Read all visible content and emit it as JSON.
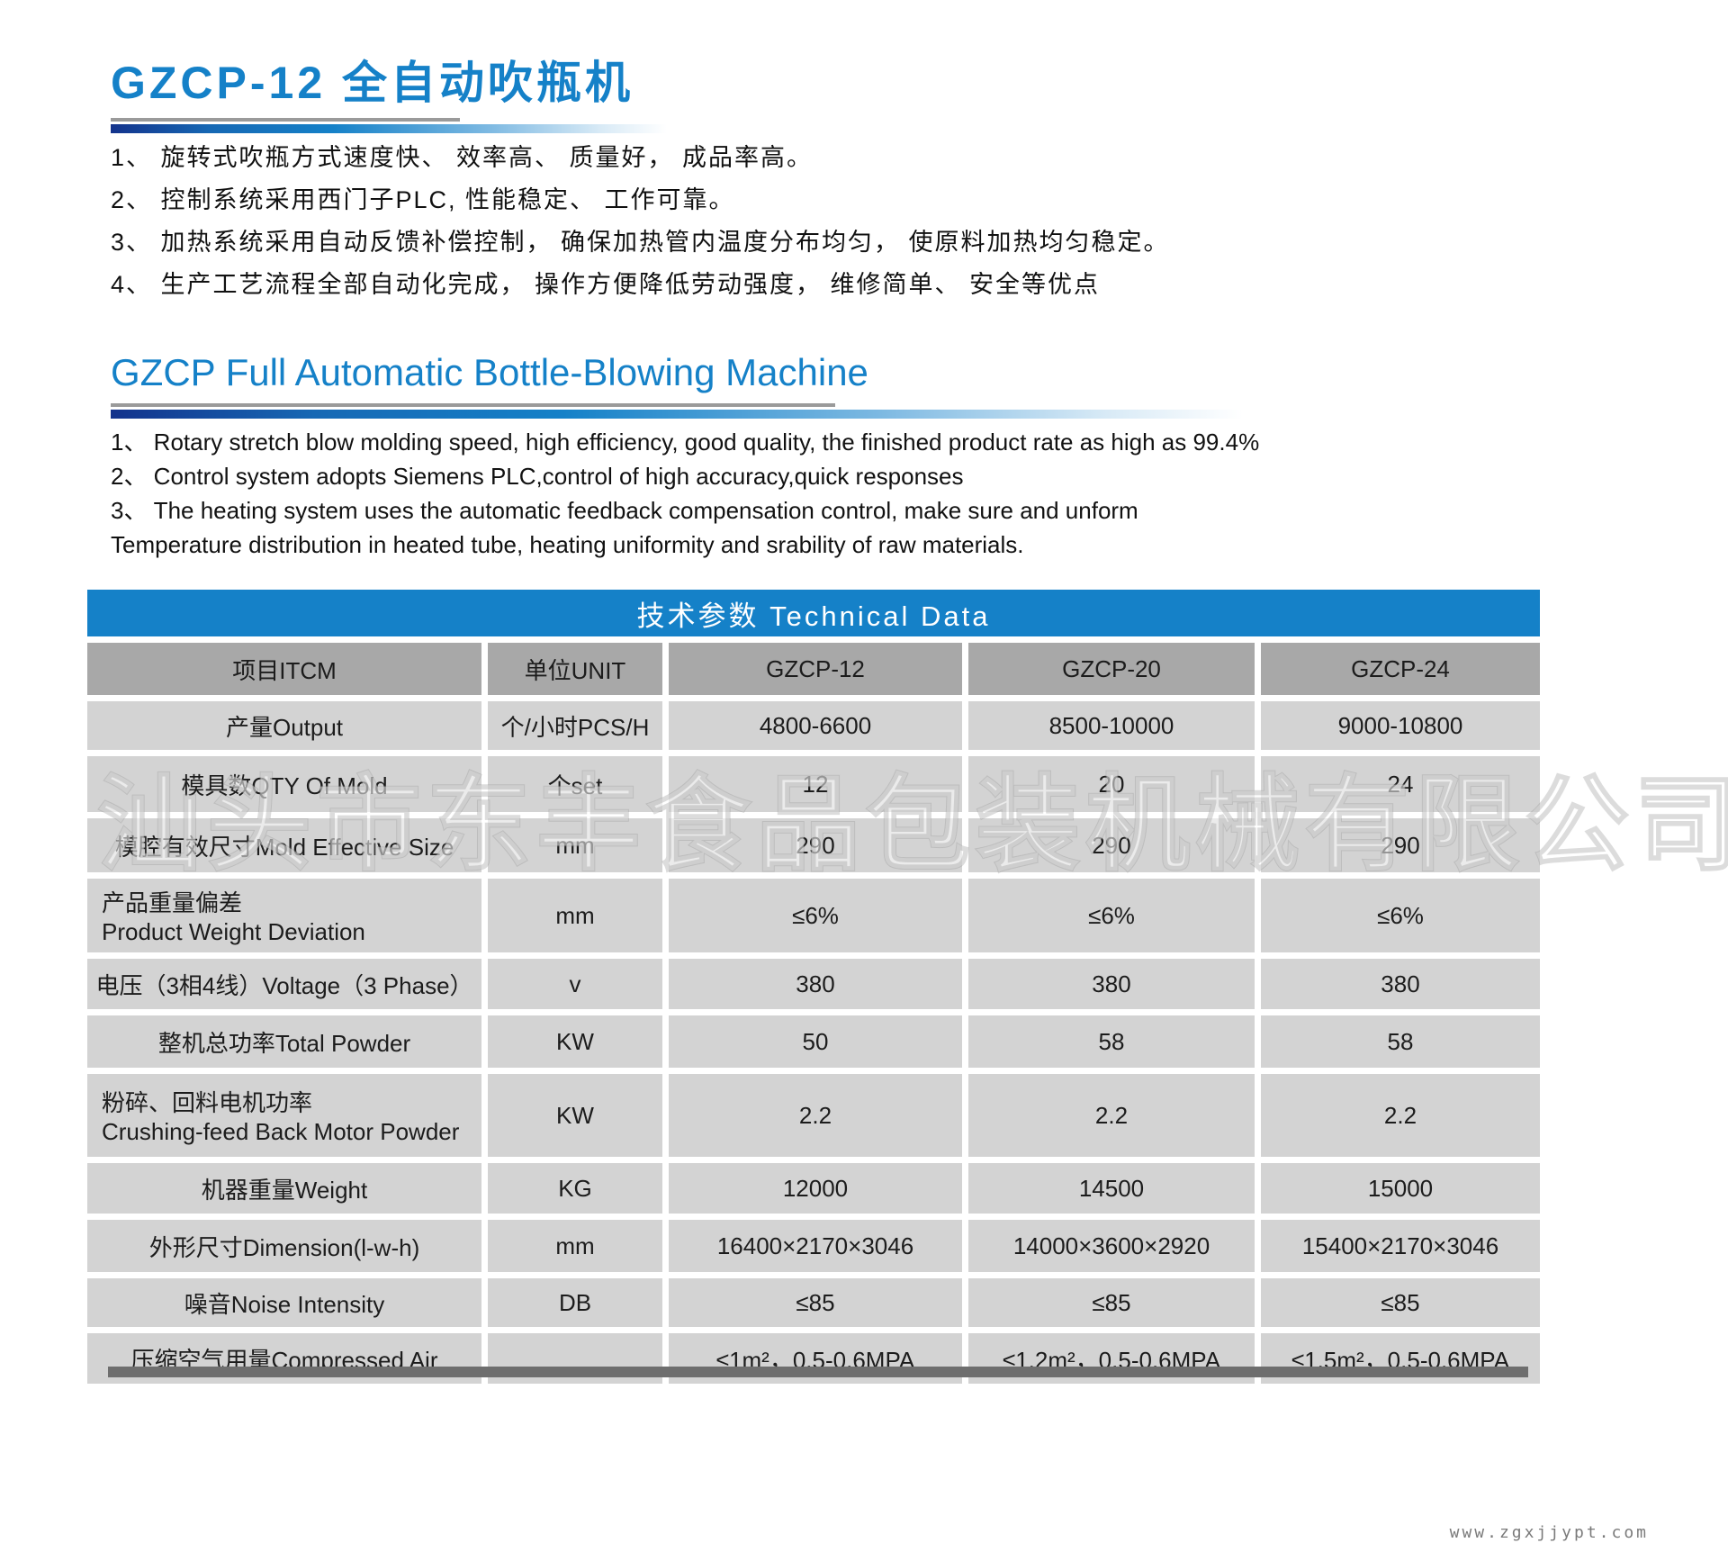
{
  "colors": {
    "accent_blue": "#1581c8",
    "table_head_gray": "#a8a8a8",
    "table_row_gray": "#d3d3d3",
    "shadow_gray": "#6e6e6e"
  },
  "header": {
    "title_cn": "GZCP-12 全自动吹瓶机",
    "title_en": "GZCP  Full Automatic Bottle-Blowing Machine"
  },
  "features_cn": [
    "1、 旋转式吹瓶方式速度快、 效率高、 质量好， 成品率高。",
    "2、 控制系统采用西门子PLC, 性能稳定、 工作可靠。",
    "3、 加热系统采用自动反馈补偿控制， 确保加热管内温度分布均匀， 使原料加热均匀稳定。",
    "4、 生产工艺流程全部自动化完成， 操作方便降低劳动强度， 维修简单、 安全等优点"
  ],
  "features_en": [
    "1、 Rotary stretch blow molding speed,  high efficiency,  good quality,  the finished product rate as high as 99.4%",
    "2、 Control system adopts Siemens PLC,control of high accuracy,quick responses",
    "3、 The heating system uses the automatic feedback compensation control,  make sure and unform",
    "Temperature distribution in heated tube,  heating uniformity and srability of raw materials."
  ],
  "table": {
    "title": "技术参数 Technical Data",
    "columns": [
      "项目ITCM",
      "单位UNIT",
      "GZCP-12",
      "GZCP-20",
      "GZCP-24"
    ],
    "rows": [
      {
        "item": "产量Output",
        "unit": "个/小时PCS/H",
        "v1": "4800-6600",
        "v2": "8500-10000",
        "v3": "9000-10800"
      },
      {
        "item": "模具数QTY Of Mold",
        "unit": "个set",
        "v1": "12",
        "v2": "20",
        "v3": "24"
      },
      {
        "item": "模腔有效尺寸Mold Effective Size",
        "unit": "mm",
        "v1": "290",
        "v2": "290",
        "v3": "290"
      },
      {
        "item": "产品重量偏差",
        "item2": "Product Weight Deviation",
        "unit": "mm",
        "v1": "≤6%",
        "v2": "≤6%",
        "v3": "≤6%"
      },
      {
        "item": "电压（3相4线）Voltage（3 Phase）",
        "unit": "v",
        "v1": "380",
        "v2": "380",
        "v3": "380"
      },
      {
        "item": "整机总功率Total Powder",
        "unit": "KW",
        "v1": "50",
        "v2": "58",
        "v3": "58"
      },
      {
        "item": "粉碎、回料电机功率",
        "item2": "Crushing-feed Back Motor Powder",
        "unit": "KW",
        "v1": "2.2",
        "v2": "2.2",
        "v3": "2.2"
      },
      {
        "item": "机器重量Weight",
        "unit": "KG",
        "v1": "12000",
        "v2": "14500",
        "v3": "15000"
      },
      {
        "item": "外形尺寸Dimension(l-w-h)",
        "unit": "mm",
        "v1": "16400×2170×3046",
        "v2": "14000×3600×2920",
        "v3": "15400×2170×3046"
      },
      {
        "item": "噪音Noise Intensity",
        "unit": "DB",
        "v1": "≤85",
        "v2": "≤85",
        "v3": "≤85"
      },
      {
        "item": "压缩空气用量Compressed Air",
        "unit": "",
        "v1": "≤1m²，0.5-0.6MPA",
        "v2": "≤1.2m²，0.5-0.6MPA",
        "v3": "≤1.5m²，0.5-0.6MPA"
      }
    ]
  },
  "watermark": "汕头市东丰食品包装机械有限公司",
  "footer": {
    "url": "www.zgxjjypt.com"
  }
}
